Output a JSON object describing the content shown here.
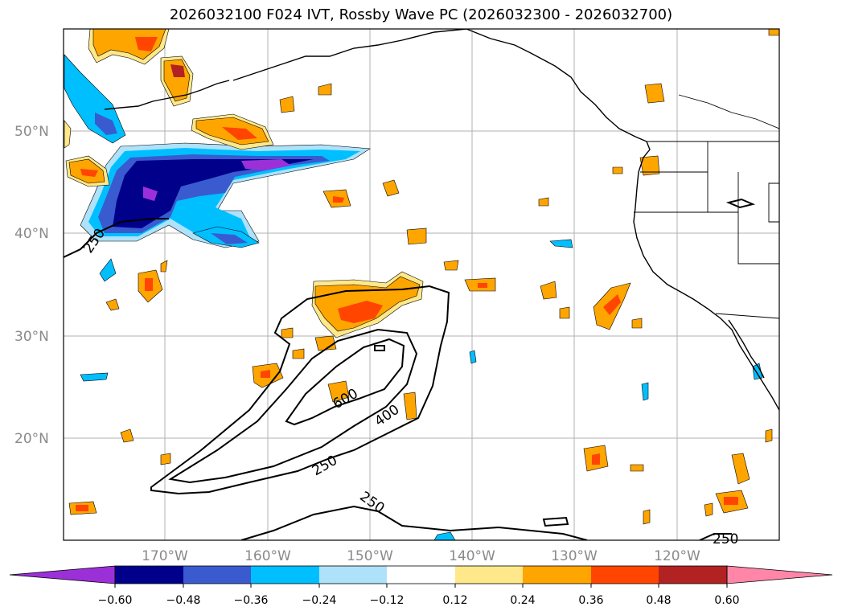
{
  "title": "2026032100 F024 IVT, Rossby Wave PC (2026032300 - 2026032700)",
  "map": {
    "lat_labels": [
      "50°N",
      "40°N",
      "30°N",
      "20°N"
    ],
    "lon_labels": [
      "170°W",
      "160°W",
      "150°W",
      "140°W",
      "130°W",
      "120°W"
    ],
    "contour_labels": [
      "250",
      "600",
      "400",
      "250",
      "250",
      "250"
    ],
    "contour_levels": [
      250,
      400,
      600
    ],
    "gridlines": true,
    "region": "North Pacific / Western North America"
  },
  "colorbar": {
    "tick_labels": [
      "−0.60",
      "−0.48",
      "−0.36",
      "−0.24",
      "−0.12",
      "0.12",
      "0.24",
      "0.36",
      "0.48",
      "0.60"
    ],
    "colors": [
      "#9b30d8",
      "#00008b",
      "#3a5bd0",
      "#00bfff",
      "#aee2fa",
      "#ffffff",
      "#ffe88a",
      "#ffa500",
      "#ff4500",
      "#b22222",
      "#ff86a8"
    ],
    "extend": "both"
  }
}
